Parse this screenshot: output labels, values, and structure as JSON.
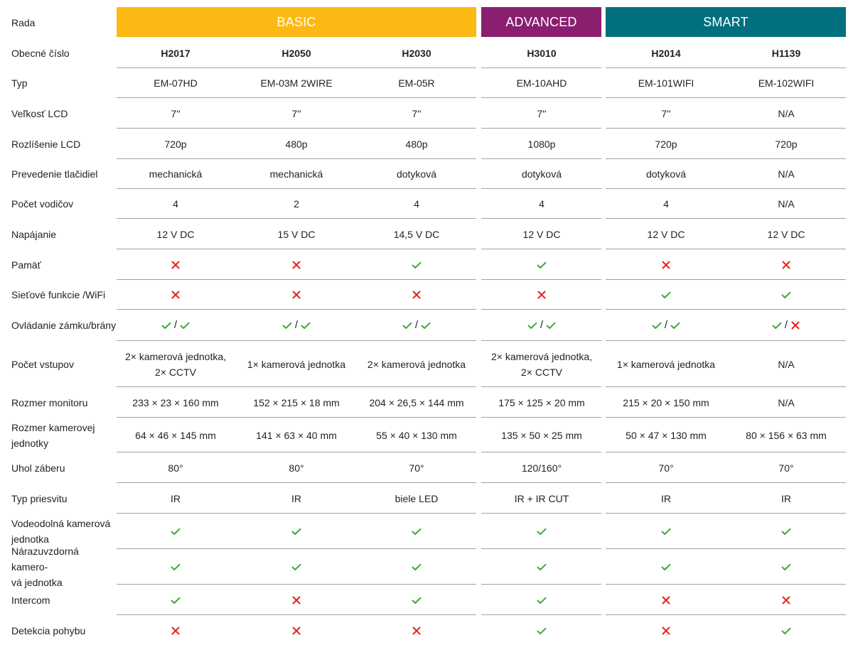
{
  "header": {
    "row_label": "Rada",
    "groups": [
      "BASIC",
      "ADVANCED",
      "SMART"
    ]
  },
  "colors": {
    "basic": "#fdb913",
    "advanced": "#8a1f6f",
    "smart": "#00707f",
    "check": "#3aaa35",
    "cross": "#e2231a"
  },
  "rows": [
    {
      "label": "Obecné číslo",
      "bold": true,
      "cells": [
        "H2017",
        "H2050",
        "H2030",
        "H3010",
        "H2014",
        "H1139"
      ]
    },
    {
      "label": "Typ",
      "cells": [
        "EM-07HD",
        "EM-03M 2WIRE",
        "EM-05R",
        "EM-10AHD",
        "EM-101WIFI",
        "EM-102WIFI"
      ]
    },
    {
      "label": "Veľkosť LCD",
      "cells": [
        "7''",
        "7''",
        "7''",
        "7''",
        "7''",
        "N/A"
      ]
    },
    {
      "label": "Rozlíšenie LCD",
      "cells": [
        "720p",
        "480p",
        "480p",
        "1080p",
        "720p",
        "720p"
      ]
    },
    {
      "label": "Prevedenie tlačidiel",
      "cells": [
        "mechanická",
        "mechanická",
        "dotyková",
        "dotyková",
        "dotyková",
        "N/A"
      ]
    },
    {
      "label": "Počet vodičov",
      "cells": [
        "4",
        "2",
        "4",
        "4",
        "4",
        "N/A"
      ]
    },
    {
      "label": "Napájanie",
      "cells": [
        "12 V DC",
        "15 V DC",
        "14,5 V DC",
        "12 V DC",
        "12 V DC",
        "12 V DC"
      ]
    },
    {
      "label": "Pamäť",
      "cells": [
        "cross-icon",
        "cross-icon",
        "check-icon",
        "check-icon",
        "cross-icon",
        "cross-icon"
      ]
    },
    {
      "label": "Sieťové funkcie /WiFi",
      "cells": [
        "cross-icon",
        "cross-icon",
        "cross-icon",
        "cross-icon",
        "check-icon",
        "check-icon"
      ]
    },
    {
      "label": "Ovládanie zámku/brány",
      "combo_separator": "/",
      "cells": [
        "check-icon/check-icon",
        "check-icon/check-icon",
        "check-icon/check-icon",
        "check-icon/check-icon",
        "check-icon/check-icon",
        "check-icon/cross-icon"
      ]
    },
    {
      "label": "Počet vstupov",
      "cells": [
        "2× kamerová jednotka,\n2× CCTV",
        "1× kamerová jednotka",
        "2× kamerová jednotka",
        "2× kamerová jednotka,\n2× CCTV",
        "1× kamerová jednotka",
        "N/A"
      ]
    },
    {
      "label": "Rozmer monitoru",
      "cells": [
        "233 × 23 × 160 mm",
        "152 × 215 × 18 mm",
        "204 × 26,5 × 144 mm",
        "175 × 125 × 20 mm",
        "215 × 20 × 150 mm",
        "N/A"
      ]
    },
    {
      "label": "Rozmer kamerovej\njednotky",
      "cells": [
        "64 × 46 × 145 mm",
        "141 × 63 × 40 mm",
        "55 × 40 × 130 mm",
        "135 × 50 × 25 mm",
        "50 × 47 × 130 mm",
        "80 × 156 × 63 mm"
      ]
    },
    {
      "label": "Uhol záberu",
      "cells": [
        "80°",
        "80°",
        "70°",
        "120/160°",
        "70°",
        "70°"
      ]
    },
    {
      "label": "Typ priesvitu",
      "cells": [
        "IR",
        "IR",
        "biele LED",
        "IR + IR CUT",
        "IR",
        "IR"
      ]
    },
    {
      "label": "Vodeodolná kamerová\njednotka",
      "cells": [
        "check-icon",
        "check-icon",
        "check-icon",
        "check-icon",
        "check-icon",
        "check-icon"
      ]
    },
    {
      "label": "Nárazuvzdorná kamero-\nvá jednotka",
      "cells": [
        "check-icon",
        "check-icon",
        "check-icon",
        "check-icon",
        "check-icon",
        "check-icon"
      ]
    },
    {
      "label": "Intercom",
      "cells": [
        "check-icon",
        "cross-icon",
        "check-icon",
        "check-icon",
        "cross-icon",
        "cross-icon"
      ]
    },
    {
      "label": "Detekcia pohybu",
      "cells": [
        "cross-icon",
        "cross-icon",
        "cross-icon",
        "check-icon",
        "cross-icon",
        "check-icon"
      ]
    }
  ]
}
